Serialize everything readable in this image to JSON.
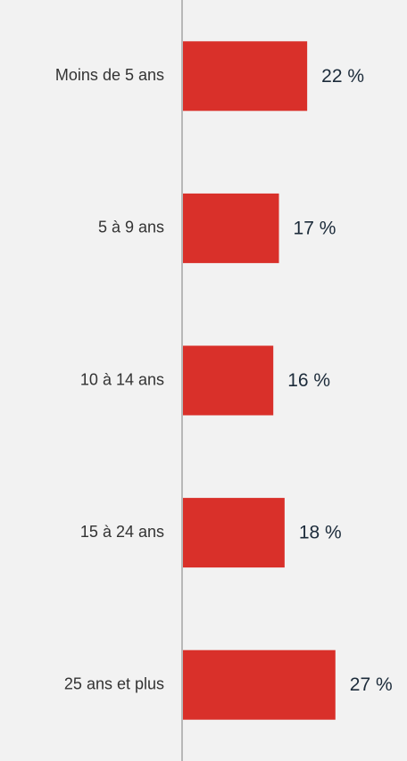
{
  "chart_data": {
    "type": "barh",
    "categories": [
      "Moins de 5 ans",
      "5 à 9 ans",
      "10 à 14 ans",
      "15 à 24 ans",
      "25 ans et plus"
    ],
    "values": [
      22,
      17,
      16,
      18,
      27
    ],
    "value_labels": [
      "22 %",
      "17 %",
      "16 %",
      "18 %",
      "27 %"
    ],
    "color": "#d9302a",
    "xlim": [
      0,
      40
    ]
  }
}
